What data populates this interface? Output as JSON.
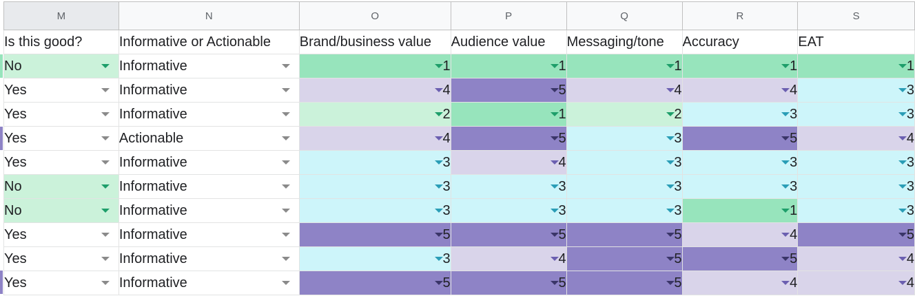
{
  "palette": {
    "c1": "#97e4bc",
    "c2": "#cbf2da",
    "c3": "#cdf5fa",
    "c4": "#d9d4ea",
    "c5": "#8e83c6",
    "white": "#ffffff"
  },
  "columns": [
    "M",
    "N",
    "O",
    "P",
    "Q",
    "R",
    "S"
  ],
  "headers": [
    "Is this good?",
    "Informative or Actionable",
    "Brand/business value",
    "Audience value",
    "Messaging/tone",
    "Accuracy",
    "EAT"
  ],
  "rows": [
    {
      "good": "No",
      "type": "Informative",
      "scores": [
        "1",
        "1",
        "1",
        "1",
        "1"
      ]
    },
    {
      "good": "Yes",
      "type": "Informative",
      "scores": [
        "4",
        "5",
        "4",
        "4",
        "3"
      ]
    },
    {
      "good": "Yes",
      "type": "Informative",
      "scores": [
        "2",
        "1",
        "2",
        "3",
        "3"
      ]
    },
    {
      "good": "Yes",
      "type": "Actionable",
      "scores": [
        "4",
        "5",
        "3",
        "5",
        "4"
      ]
    },
    {
      "good": "Yes",
      "type": "Informative",
      "scores": [
        "3",
        "4",
        "3",
        "3",
        "3"
      ]
    },
    {
      "good": "No",
      "type": "Informative",
      "scores": [
        "3",
        "3",
        "3",
        "3",
        "3"
      ]
    },
    {
      "good": "No",
      "type": "Informative",
      "scores": [
        "3",
        "3",
        "3",
        "1",
        "3"
      ]
    },
    {
      "good": "Yes",
      "type": "Informative",
      "scores": [
        "5",
        "5",
        "5",
        "4",
        "5"
      ]
    },
    {
      "good": "Yes",
      "type": "Informative",
      "scores": [
        "3",
        "4",
        "5",
        "5",
        "4"
      ]
    },
    {
      "good": "Yes",
      "type": "Informative",
      "scores": [
        "5",
        "5",
        "5",
        "4",
        "4"
      ]
    }
  ]
}
